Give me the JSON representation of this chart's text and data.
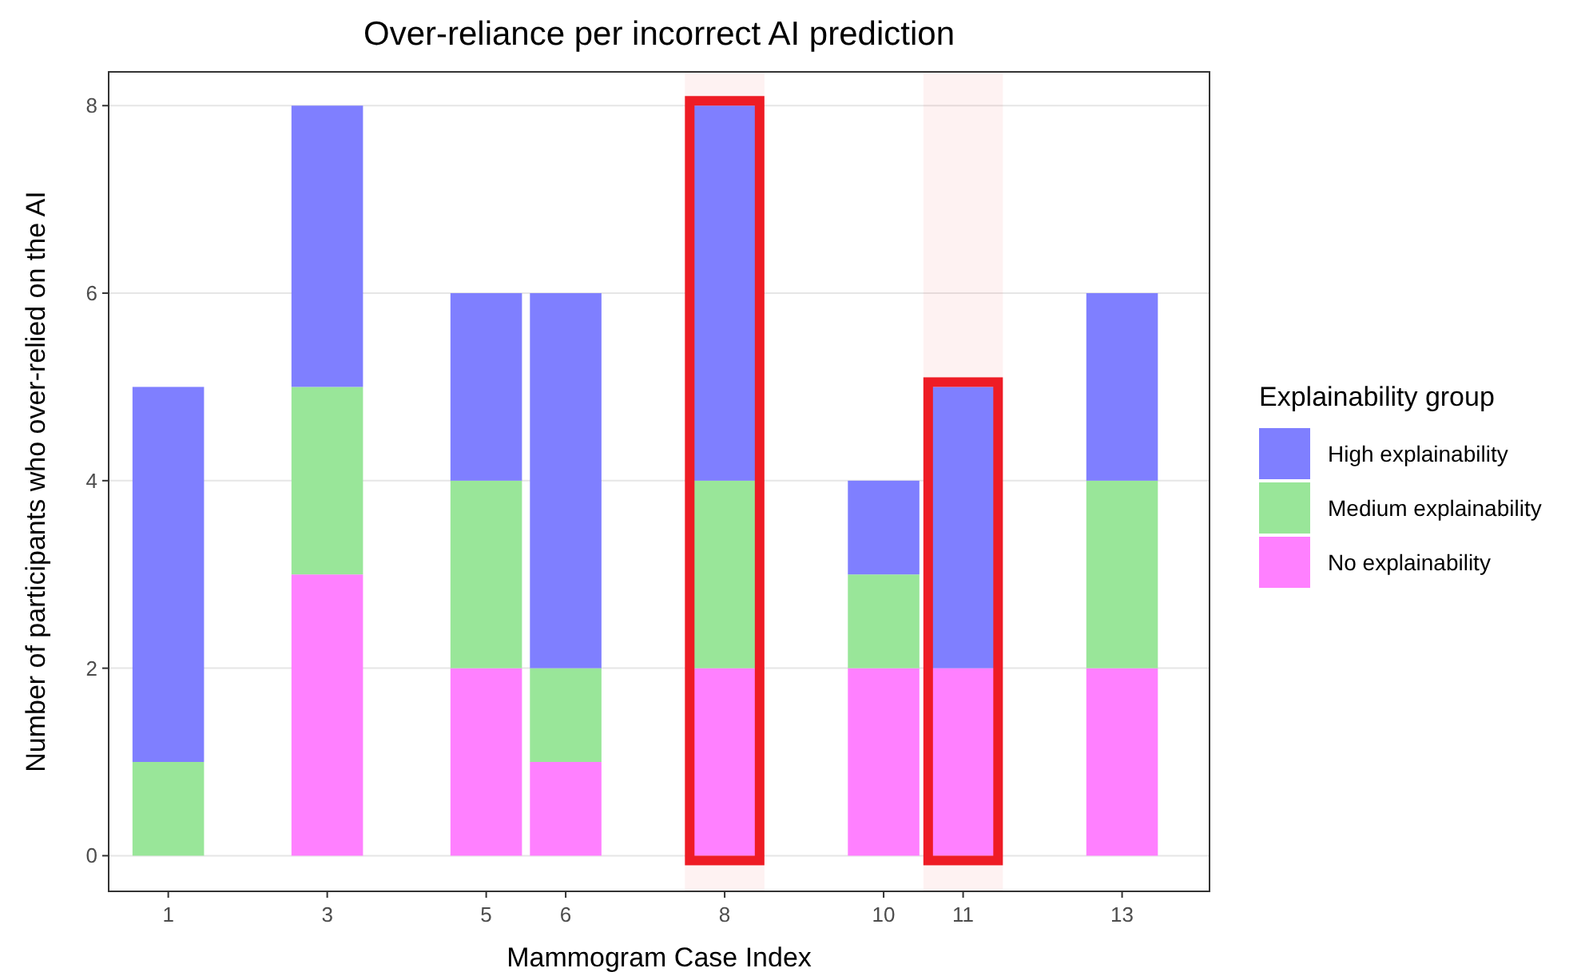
{
  "chart_data": {
    "type": "bar",
    "title": "Over-reliance per incorrect AI prediction",
    "xlabel": "Mammogram Case Index",
    "ylabel": "Number of participants who over-relied on the AI",
    "legend_title": "Explainability group",
    "x": [
      1,
      3,
      5,
      6,
      8,
      10,
      11,
      13
    ],
    "xlim": [
      0.25,
      14.1
    ],
    "xticks": [
      1,
      3,
      5,
      6,
      8,
      10,
      11,
      13
    ],
    "ylim": [
      -0.38,
      8.36
    ],
    "yticks": [
      0,
      2,
      4,
      6,
      8
    ],
    "stacked": true,
    "grid": "y",
    "legend": "right",
    "series": [
      {
        "name": "No explainability",
        "color": "#ff80ff",
        "values": [
          0,
          3,
          2,
          1,
          2,
          2,
          2,
          2
        ]
      },
      {
        "name": "Medium explainability",
        "color": "#99e699",
        "values": [
          1,
          2,
          2,
          1,
          2,
          1,
          0,
          2
        ]
      },
      {
        "name": "High explainability",
        "color": "#7f7fff",
        "values": [
          4,
          3,
          2,
          4,
          4,
          1,
          3,
          2
        ]
      }
    ],
    "bands": [
      {
        "axis": "x",
        "from": 7.5,
        "to": 8.5,
        "color": "#ee1c25"
      },
      {
        "axis": "x",
        "from": 10.5,
        "to": 11.5,
        "color": "#ee1c25"
      }
    ]
  }
}
